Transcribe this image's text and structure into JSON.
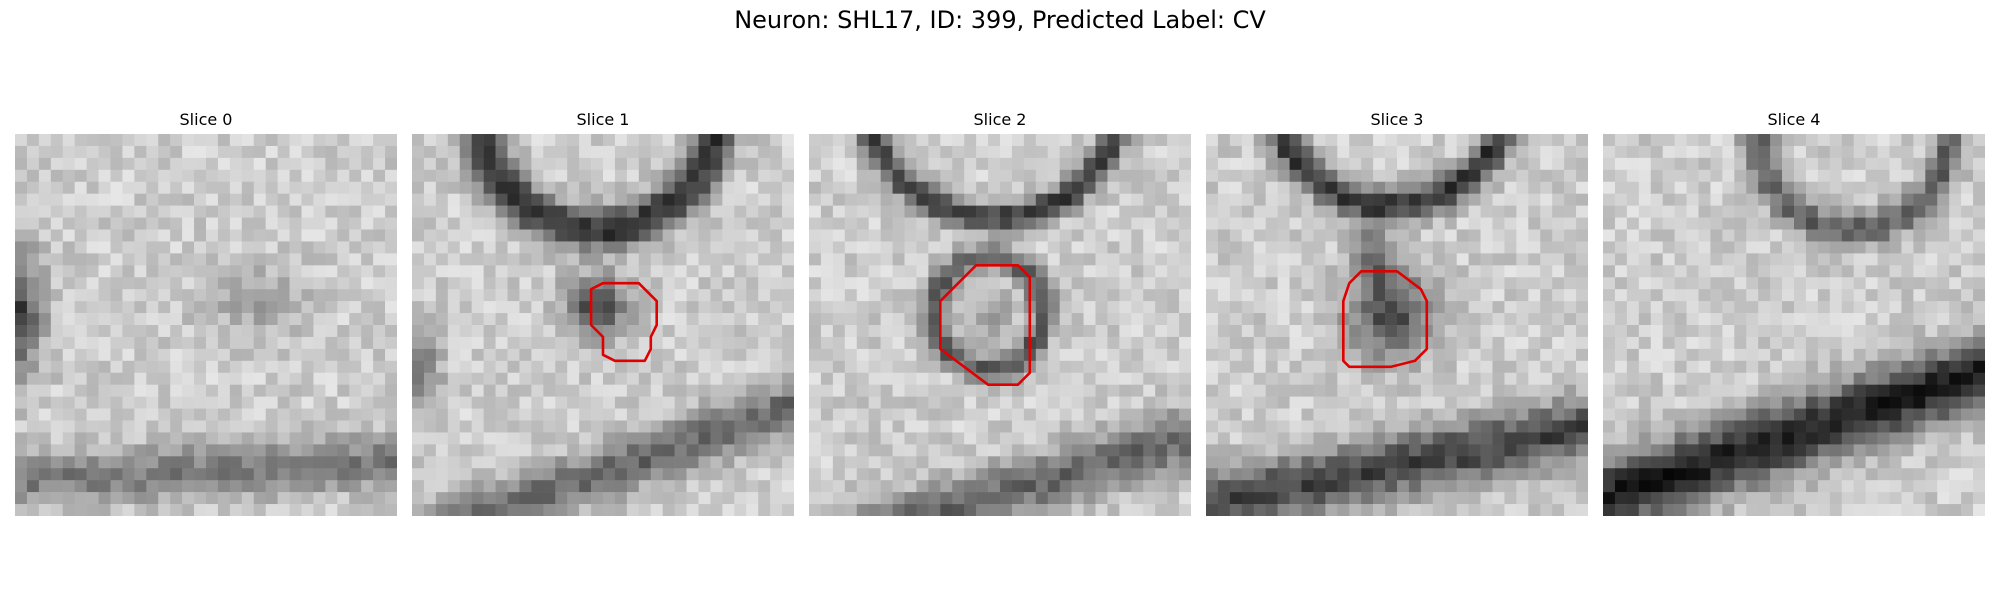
{
  "figure": {
    "title": "Neuron: SHL17, ID: 399, Predicted Label: CV"
  },
  "panels": [
    {
      "title": "Slice 0",
      "has_contour": false
    },
    {
      "title": "Slice 1",
      "has_contour": true
    },
    {
      "title": "Slice 2",
      "has_contour": true
    },
    {
      "title": "Slice 3",
      "has_contour": true
    },
    {
      "title": "Slice 4",
      "has_contour": false
    }
  ],
  "colors": {
    "contour": "#e00000",
    "image_colormap": "grayscale"
  }
}
